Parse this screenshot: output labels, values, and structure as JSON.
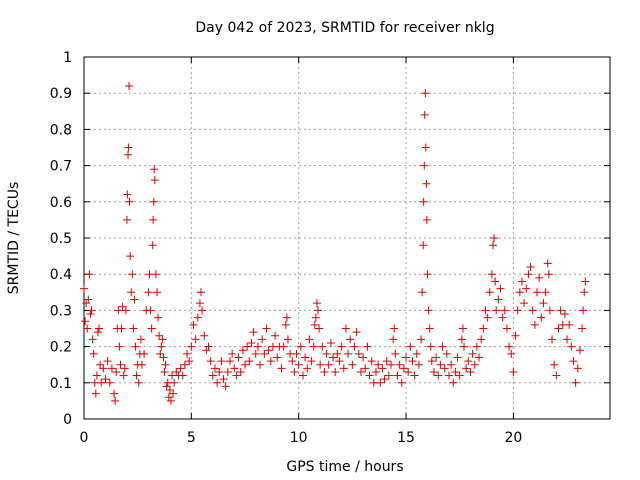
{
  "chart_data": {
    "type": "scatter",
    "title": "Day 042 of 2023, SRMTID for receiver nklg",
    "xlabel": "GPS time / hours",
    "ylabel": "SRMTID / TECUs",
    "xlim": [
      0,
      24.5
    ],
    "ylim": [
      0,
      1
    ],
    "xticks": [
      0,
      5,
      10,
      15,
      20
    ],
    "xtick_labels": [
      "0",
      "5",
      "10",
      "15",
      "20"
    ],
    "yticks": [
      0,
      0.1,
      0.2,
      0.3,
      0.4,
      0.5,
      0.6,
      0.7,
      0.8,
      0.9,
      1
    ],
    "ytick_labels": [
      "0",
      "0.1",
      "0.2",
      "0.3",
      "0.4",
      "0.5",
      "0.6",
      "0.7",
      "0.8",
      "0.9",
      "1"
    ],
    "grid": true,
    "marker": "+",
    "color": "#e00000",
    "series": [
      {
        "name": "SRMTID",
        "points": [
          [
            0.0,
            0.36
          ],
          [
            0.05,
            0.27
          ],
          [
            0.1,
            0.32
          ],
          [
            0.15,
            0.25
          ],
          [
            0.2,
            0.33
          ],
          [
            0.25,
            0.4
          ],
          [
            0.3,
            0.29
          ],
          [
            0.35,
            0.3
          ],
          [
            0.4,
            0.22
          ],
          [
            0.45,
            0.18
          ],
          [
            0.5,
            0.1
          ],
          [
            0.55,
            0.07
          ],
          [
            0.6,
            0.12
          ],
          [
            0.65,
            0.24
          ],
          [
            0.7,
            0.25
          ],
          [
            0.75,
            0.15
          ],
          [
            0.8,
            0.1
          ],
          [
            0.9,
            0.14
          ],
          [
            1.0,
            0.11
          ],
          [
            1.1,
            0.16
          ],
          [
            1.2,
            0.1
          ],
          [
            1.3,
            0.14
          ],
          [
            1.4,
            0.07
          ],
          [
            1.45,
            0.05
          ],
          [
            1.5,
            0.13
          ],
          [
            1.55,
            0.25
          ],
          [
            1.6,
            0.3
          ],
          [
            1.65,
            0.2
          ],
          [
            1.7,
            0.15
          ],
          [
            1.75,
            0.25
          ],
          [
            1.8,
            0.31
          ],
          [
            1.85,
            0.12
          ],
          [
            1.9,
            0.14
          ],
          [
            1.95,
            0.3
          ],
          [
            2.0,
            0.55
          ],
          [
            2.02,
            0.62
          ],
          [
            2.05,
            0.73
          ],
          [
            2.07,
            0.75
          ],
          [
            2.1,
            0.92
          ],
          [
            2.12,
            0.6
          ],
          [
            2.15,
            0.45
          ],
          [
            2.2,
            0.35
          ],
          [
            2.25,
            0.4
          ],
          [
            2.3,
            0.25
          ],
          [
            2.35,
            0.33
          ],
          [
            2.4,
            0.2
          ],
          [
            2.45,
            0.12
          ],
          [
            2.5,
            0.15
          ],
          [
            2.55,
            0.1
          ],
          [
            2.6,
            0.18
          ],
          [
            2.65,
            0.22
          ],
          [
            2.7,
            0.15
          ],
          [
            2.8,
            0.18
          ],
          [
            2.9,
            0.3
          ],
          [
            3.0,
            0.35
          ],
          [
            3.05,
            0.4
          ],
          [
            3.1,
            0.3
          ],
          [
            3.15,
            0.25
          ],
          [
            3.2,
            0.48
          ],
          [
            3.22,
            0.55
          ],
          [
            3.25,
            0.6
          ],
          [
            3.27,
            0.69
          ],
          [
            3.3,
            0.66
          ],
          [
            3.35,
            0.4
          ],
          [
            3.4,
            0.35
          ],
          [
            3.45,
            0.28
          ],
          [
            3.5,
            0.23
          ],
          [
            3.55,
            0.18
          ],
          [
            3.6,
            0.2
          ],
          [
            3.65,
            0.22
          ],
          [
            3.7,
            0.17
          ],
          [
            3.75,
            0.13
          ],
          [
            3.8,
            0.15
          ],
          [
            3.85,
            0.09
          ],
          [
            3.9,
            0.1
          ],
          [
            3.95,
            0.06
          ],
          [
            4.0,
            0.08
          ],
          [
            4.05,
            0.05
          ],
          [
            4.1,
            0.12
          ],
          [
            4.15,
            0.07
          ],
          [
            4.2,
            0.1
          ],
          [
            4.3,
            0.13
          ],
          [
            4.4,
            0.12
          ],
          [
            4.5,
            0.14
          ],
          [
            4.6,
            0.12
          ],
          [
            4.7,
            0.15
          ],
          [
            4.8,
            0.18
          ],
          [
            4.9,
            0.16
          ],
          [
            5.0,
            0.2
          ],
          [
            5.1,
            0.26
          ],
          [
            5.2,
            0.22
          ],
          [
            5.3,
            0.28
          ],
          [
            5.4,
            0.32
          ],
          [
            5.45,
            0.35
          ],
          [
            5.5,
            0.3
          ],
          [
            5.6,
            0.23
          ],
          [
            5.7,
            0.19
          ],
          [
            5.8,
            0.2
          ],
          [
            5.9,
            0.16
          ],
          [
            6.0,
            0.12
          ],
          [
            6.1,
            0.14
          ],
          [
            6.2,
            0.1
          ],
          [
            6.3,
            0.13
          ],
          [
            6.4,
            0.16
          ],
          [
            6.5,
            0.11
          ],
          [
            6.6,
            0.09
          ],
          [
            6.7,
            0.13
          ],
          [
            6.8,
            0.16
          ],
          [
            6.9,
            0.18
          ],
          [
            7.0,
            0.14
          ],
          [
            7.1,
            0.12
          ],
          [
            7.2,
            0.17
          ],
          [
            7.3,
            0.13
          ],
          [
            7.4,
            0.19
          ],
          [
            7.5,
            0.15
          ],
          [
            7.6,
            0.2
          ],
          [
            7.7,
            0.16
          ],
          [
            7.8,
            0.21
          ],
          [
            7.9,
            0.24
          ],
          [
            8.0,
            0.18
          ],
          [
            8.1,
            0.2
          ],
          [
            8.2,
            0.15
          ],
          [
            8.3,
            0.22
          ],
          [
            8.4,
            0.18
          ],
          [
            8.5,
            0.25
          ],
          [
            8.6,
            0.19
          ],
          [
            8.7,
            0.16
          ],
          [
            8.8,
            0.2
          ],
          [
            8.9,
            0.23
          ],
          [
            9.0,
            0.17
          ],
          [
            9.1,
            0.2
          ],
          [
            9.2,
            0.14
          ],
          [
            9.3,
            0.2
          ],
          [
            9.4,
            0.26
          ],
          [
            9.45,
            0.28
          ],
          [
            9.5,
            0.22
          ],
          [
            9.6,
            0.18
          ],
          [
            9.7,
            0.16
          ],
          [
            9.8,
            0.13
          ],
          [
            9.9,
            0.18
          ],
          [
            10.0,
            0.15
          ],
          [
            10.1,
            0.2
          ],
          [
            10.2,
            0.12
          ],
          [
            10.3,
            0.17
          ],
          [
            10.4,
            0.14
          ],
          [
            10.5,
            0.22
          ],
          [
            10.6,
            0.16
          ],
          [
            10.7,
            0.2
          ],
          [
            10.75,
            0.26
          ],
          [
            10.8,
            0.28
          ],
          [
            10.85,
            0.32
          ],
          [
            10.9,
            0.3
          ],
          [
            10.95,
            0.25
          ],
          [
            11.0,
            0.15
          ],
          [
            11.1,
            0.2
          ],
          [
            11.2,
            0.13
          ],
          [
            11.3,
            0.18
          ],
          [
            11.4,
            0.15
          ],
          [
            11.5,
            0.21
          ],
          [
            11.6,
            0.17
          ],
          [
            11.7,
            0.13
          ],
          [
            11.8,
            0.18
          ],
          [
            11.9,
            0.16
          ],
          [
            12.0,
            0.2
          ],
          [
            12.1,
            0.14
          ],
          [
            12.2,
            0.25
          ],
          [
            12.3,
            0.18
          ],
          [
            12.4,
            0.22
          ],
          [
            12.5,
            0.15
          ],
          [
            12.6,
            0.2
          ],
          [
            12.7,
            0.24
          ],
          [
            12.8,
            0.18
          ],
          [
            12.9,
            0.13
          ],
          [
            13.0,
            0.17
          ],
          [
            13.1,
            0.14
          ],
          [
            13.2,
            0.2
          ],
          [
            13.3,
            0.12
          ],
          [
            13.4,
            0.16
          ],
          [
            13.5,
            0.1
          ],
          [
            13.6,
            0.13
          ],
          [
            13.7,
            0.15
          ],
          [
            13.8,
            0.1
          ],
          [
            13.9,
            0.14
          ],
          [
            14.0,
            0.11
          ],
          [
            14.1,
            0.16
          ],
          [
            14.2,
            0.12
          ],
          [
            14.3,
            0.15
          ],
          [
            14.4,
            0.22
          ],
          [
            14.45,
            0.25
          ],
          [
            14.5,
            0.18
          ],
          [
            14.6,
            0.12
          ],
          [
            14.7,
            0.15
          ],
          [
            14.8,
            0.1
          ],
          [
            14.9,
            0.14
          ],
          [
            15.0,
            0.17
          ],
          [
            15.1,
            0.13
          ],
          [
            15.2,
            0.2
          ],
          [
            15.3,
            0.16
          ],
          [
            15.4,
            0.12
          ],
          [
            15.5,
            0.18
          ],
          [
            15.6,
            0.15
          ],
          [
            15.7,
            0.22
          ],
          [
            15.75,
            0.35
          ],
          [
            15.8,
            0.48
          ],
          [
            15.82,
            0.6
          ],
          [
            15.85,
            0.7
          ],
          [
            15.87,
            0.84
          ],
          [
            15.9,
            0.9
          ],
          [
            15.92,
            0.75
          ],
          [
            15.95,
            0.65
          ],
          [
            15.97,
            0.55
          ],
          [
            16.0,
            0.4
          ],
          [
            16.05,
            0.3
          ],
          [
            16.1,
            0.25
          ],
          [
            16.15,
            0.2
          ],
          [
            16.2,
            0.16
          ],
          [
            16.3,
            0.13
          ],
          [
            16.4,
            0.17
          ],
          [
            16.5,
            0.12
          ],
          [
            16.6,
            0.15
          ],
          [
            16.7,
            0.2
          ],
          [
            16.8,
            0.14
          ],
          [
            16.9,
            0.18
          ],
          [
            17.0,
            0.12
          ],
          [
            17.1,
            0.15
          ],
          [
            17.2,
            0.1
          ],
          [
            17.3,
            0.13
          ],
          [
            17.4,
            0.17
          ],
          [
            17.5,
            0.12
          ],
          [
            17.6,
            0.22
          ],
          [
            17.65,
            0.25
          ],
          [
            17.7,
            0.2
          ],
          [
            17.8,
            0.14
          ],
          [
            17.9,
            0.16
          ],
          [
            18.0,
            0.13
          ],
          [
            18.1,
            0.18
          ],
          [
            18.2,
            0.15
          ],
          [
            18.3,
            0.2
          ],
          [
            18.4,
            0.17
          ],
          [
            18.5,
            0.22
          ],
          [
            18.6,
            0.25
          ],
          [
            18.7,
            0.3
          ],
          [
            18.8,
            0.28
          ],
          [
            18.9,
            0.35
          ],
          [
            19.0,
            0.4
          ],
          [
            19.05,
            0.48
          ],
          [
            19.1,
            0.5
          ],
          [
            19.15,
            0.38
          ],
          [
            19.2,
            0.3
          ],
          [
            19.3,
            0.33
          ],
          [
            19.4,
            0.36
          ],
          [
            19.5,
            0.28
          ],
          [
            19.6,
            0.3
          ],
          [
            19.7,
            0.25
          ],
          [
            19.8,
            0.2
          ],
          [
            19.9,
            0.18
          ],
          [
            20.0,
            0.13
          ],
          [
            20.1,
            0.23
          ],
          [
            20.2,
            0.3
          ],
          [
            20.3,
            0.35
          ],
          [
            20.4,
            0.38
          ],
          [
            20.5,
            0.32
          ],
          [
            20.6,
            0.36
          ],
          [
            20.7,
            0.4
          ],
          [
            20.8,
            0.42
          ],
          [
            20.9,
            0.3
          ],
          [
            21.0,
            0.26
          ],
          [
            21.1,
            0.35
          ],
          [
            21.2,
            0.39
          ],
          [
            21.3,
            0.28
          ],
          [
            21.4,
            0.32
          ],
          [
            21.5,
            0.35
          ],
          [
            21.6,
            0.43
          ],
          [
            21.65,
            0.4
          ],
          [
            21.7,
            0.3
          ],
          [
            21.8,
            0.22
          ],
          [
            21.9,
            0.15
          ],
          [
            22.0,
            0.12
          ],
          [
            22.1,
            0.25
          ],
          [
            22.2,
            0.3
          ],
          [
            22.3,
            0.26
          ],
          [
            22.4,
            0.29
          ],
          [
            22.5,
            0.22
          ],
          [
            22.6,
            0.26
          ],
          [
            22.7,
            0.2
          ],
          [
            22.8,
            0.16
          ],
          [
            22.9,
            0.1
          ],
          [
            23.0,
            0.14
          ],
          [
            23.1,
            0.19
          ],
          [
            23.2,
            0.25
          ],
          [
            23.25,
            0.3
          ],
          [
            23.3,
            0.35
          ],
          [
            23.35,
            0.38
          ]
        ]
      }
    ]
  }
}
